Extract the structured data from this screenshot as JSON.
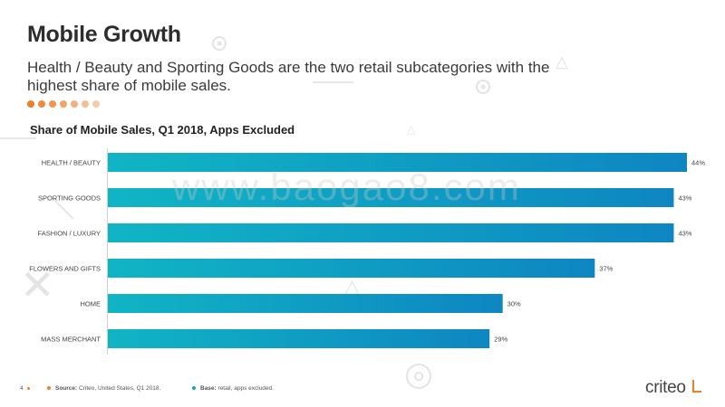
{
  "header": {
    "title": "Mobile Growth",
    "subtitle": "Health / Beauty and Sporting Goods are the two retail subcategories with the highest share of mobile sales."
  },
  "watermark": "www.baogao8.com",
  "dots_colors": [
    "#f07e26",
    "#f28a3c",
    "#f39652",
    "#f5a367",
    "#f6af7d",
    "#f8bc93",
    "#f9c9a9"
  ],
  "chart_data": {
    "type": "bar",
    "orientation": "horizontal",
    "title": "Share of Mobile Sales, Q1 2018, Apps Excluded",
    "categories": [
      "HEALTH / BEAUTY",
      "SPORTING GOODS",
      "FASHION / LUXURY",
      "FLOWERS AND GIFTS",
      "HOME",
      "MASS MERCHANT"
    ],
    "values": [
      44,
      43,
      43,
      37,
      30,
      29
    ],
    "data_labels": [
      "44%",
      "43%",
      "43%",
      "37%",
      "30%",
      "29%"
    ],
    "unit": "%",
    "xlim": [
      0,
      44
    ],
    "grid": false,
    "bar_gradient": [
      "#10b5c4",
      "#0e86c2"
    ]
  },
  "footer": {
    "page_number": "4",
    "source_label": "Source:",
    "source_text": "Criteo, United States, Q1 2018.",
    "base_label": "Base:",
    "base_text": "retail, apps excluded.",
    "source_dot_color": "#f07e26",
    "base_dot_color": "#10a5c4"
  },
  "logo": {
    "text": "criteo"
  }
}
